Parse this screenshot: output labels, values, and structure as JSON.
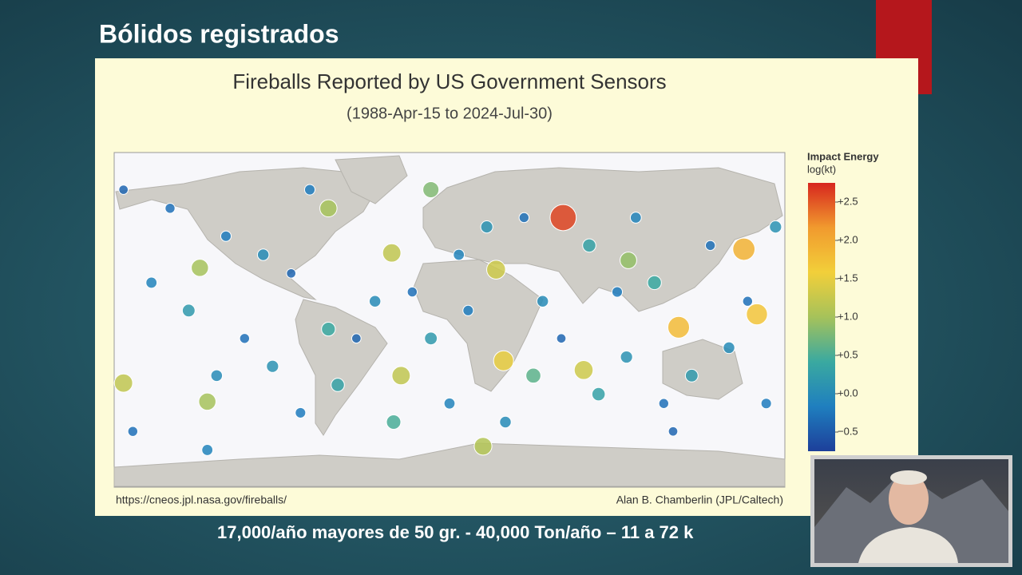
{
  "slide": {
    "title": "Bólidos registrados",
    "caption": "17,000/año mayores de 50 gr. - 40,000 Ton/año – 11 a 72 k"
  },
  "chart_data": {
    "type": "scatter",
    "title": "Fireballs Reported by US Government Sensors",
    "subtitle": "(1988-Apr-15 to 2024-Jul-30)",
    "source": "https://cneos.jpl.nasa.gov/fireballs/",
    "credit": "Alan B. Chamberlin (JPL/Caltech)",
    "xlim": [
      -180,
      180
    ],
    "ylim": [
      -90,
      90
    ],
    "x": [
      61,
      123,
      158,
      165,
      29,
      72,
      -175,
      -130,
      -134,
      -65,
      -31,
      18,
      -26,
      25,
      96,
      -10,
      -150,
      -120,
      -100,
      -85,
      -160,
      -140,
      -110,
      -95,
      -80,
      -60,
      -50,
      -40,
      -20,
      -10,
      0,
      10,
      20,
      40,
      50,
      60,
      80,
      90,
      100,
      110,
      130,
      140,
      150,
      170,
      175,
      -170,
      -130,
      30,
      120,
      -75,
      -30,
      45,
      115,
      -175,
      75,
      5,
      -65,
      160,
      -125,
      95
    ],
    "values": [
      55,
      -4,
      38,
      3,
      -22,
      -27,
      -34,
      -44,
      28,
      60,
      36,
      -68,
      -30,
      27,
      32,
      70,
      60,
      45,
      35,
      25,
      20,
      5,
      -10,
      -25,
      -50,
      -35,
      -10,
      10,
      15,
      -10,
      -45,
      5,
      50,
      55,
      10,
      -10,
      -40,
      15,
      55,
      20,
      -30,
      40,
      -15,
      -45,
      50,
      -60,
      -70,
      -55,
      -60,
      70,
      -55,
      -30,
      -45,
      70,
      40,
      35,
      -5,
      10,
      -30,
      -20
    ],
    "energy": [
      2.6,
      1.8,
      1.9,
      1.7,
      1.5,
      1.3,
      1.2,
      1.0,
      1.0,
      1.0,
      1.2,
      1.1,
      1.2,
      1.3,
      0.9,
      0.8,
      -0.3,
      -0.2,
      0.0,
      -0.4,
      -0.1,
      0.2,
      -0.3,
      0.1,
      -0.2,
      0.3,
      -0.4,
      0.0,
      -0.3,
      0.2,
      -0.1,
      -0.2,
      0.1,
      -0.3,
      0.0,
      -0.4,
      0.3,
      -0.2,
      -0.1,
      0.4,
      0.2,
      -0.3,
      0.0,
      -0.2,
      0.1,
      -0.3,
      -0.1,
      0.0,
      -0.4,
      -0.2,
      0.5,
      0.6,
      -0.3,
      -0.4,
      0.3,
      -0.1,
      0.4,
      -0.3,
      0.0,
      0.1
    ],
    "colorbar": {
      "title": "Impact Energy",
      "subtitle": "log(kt)",
      "clim": [
        -0.75,
        2.75
      ],
      "colorscale": [
        "#1d3f9a",
        "#1f7fbf",
        "#3aa9a0",
        "#a6c25a",
        "#f2cf3a",
        "#f19a2e",
        "#d7261e"
      ],
      "ticks": [
        {
          "value": 2.5,
          "label": "+2.5"
        },
        {
          "value": 2.0,
          "label": "+2.0"
        },
        {
          "value": 1.5,
          "label": "+1.5"
        },
        {
          "value": 1.0,
          "label": "+1.0"
        },
        {
          "value": 0.5,
          "label": "+0.5"
        },
        {
          "value": 0.0,
          "label": "+0.0"
        },
        {
          "value": -0.5,
          "label": "−0.5"
        }
      ]
    }
  }
}
